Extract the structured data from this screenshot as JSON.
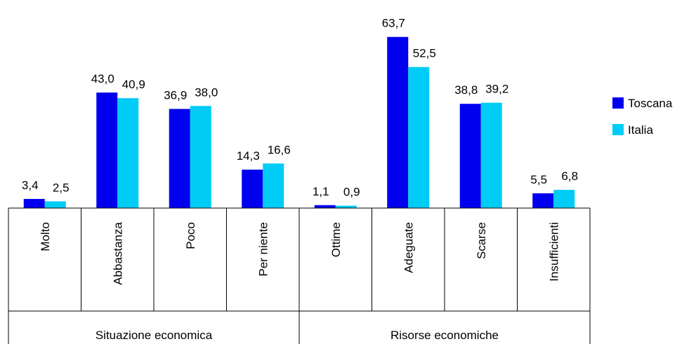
{
  "chart_data": {
    "type": "bar",
    "title": "",
    "xlabel": "",
    "ylabel": "",
    "ylim": [
      0,
      70
    ],
    "grid": false,
    "legend_position": "right",
    "groups": [
      {
        "label": "Situazione economica",
        "categories": [
          "Molto",
          "Abbastanza",
          "Poco",
          "Per niente"
        ]
      },
      {
        "label": "Risorse economiche",
        "categories": [
          "Ottime",
          "Adeguate",
          "Scarse",
          "Insufficienti"
        ]
      }
    ],
    "categories": [
      "Molto",
      "Abbastanza",
      "Poco",
      "Per niente",
      "Ottime",
      "Adeguate",
      "Scarse",
      "Insufficienti"
    ],
    "series": [
      {
        "name": "Toscana",
        "color": "#0000ee",
        "values": [
          3.4,
          43.0,
          36.9,
          14.3,
          1.1,
          63.7,
          38.8,
          5.5
        ],
        "labels": [
          "3,4",
          "43,0",
          "36,9",
          "14,3",
          "1,1",
          "63,7",
          "38,8",
          "5,5"
        ]
      },
      {
        "name": "Italia",
        "color": "#00ccf5",
        "values": [
          2.5,
          40.9,
          38.0,
          16.6,
          0.9,
          52.5,
          39.2,
          6.8
        ],
        "labels": [
          "2,5",
          "40,9",
          "38,0",
          "16,6",
          "0,9",
          "52,5",
          "39,2",
          "6,8"
        ]
      }
    ]
  }
}
